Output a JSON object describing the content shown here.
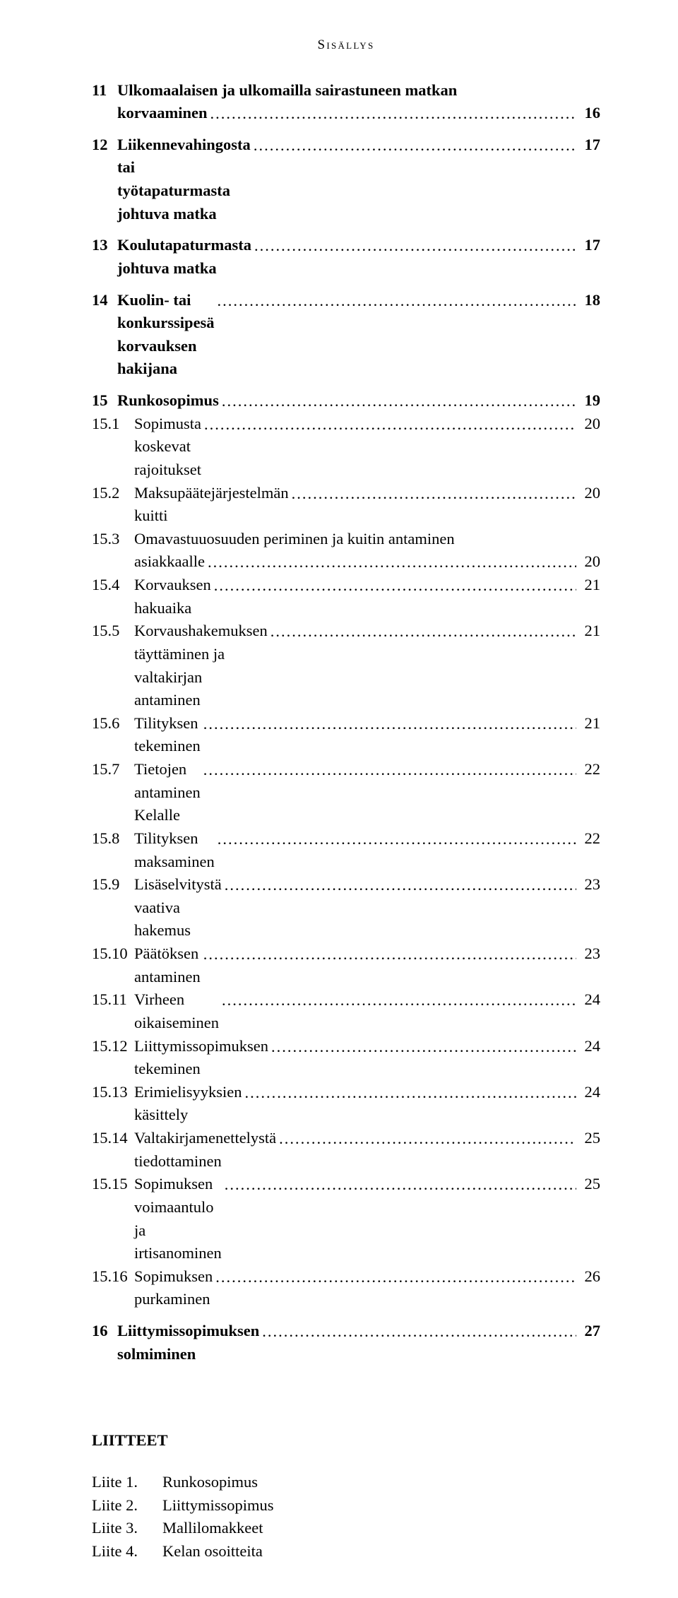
{
  "running_head": "Sisällys",
  "dots": "........................................................................................................................................................................................................................................",
  "toc": [
    {
      "lvl": 1,
      "num": "11",
      "title": "Ulkomaalaisen ja ulkomailla sairastuneen matkan korvaaminen",
      "page": "16",
      "gap": false,
      "wrap": true
    },
    {
      "lvl": 1,
      "num": "12",
      "title": "Liikennevahingosta tai työtapaturmasta johtuva matka",
      "page": "17",
      "gap": true
    },
    {
      "lvl": 1,
      "num": "13",
      "title": "Koulutapaturmasta johtuva matka",
      "page": "17",
      "gap": true
    },
    {
      "lvl": 1,
      "num": "14",
      "title": "Kuolin- tai konkurssipesä korvauksen hakijana",
      "page": "18",
      "gap": true
    },
    {
      "lvl": 1,
      "num": "15",
      "title": "Runkosopimus",
      "page": "19",
      "gap": true
    },
    {
      "lvl": 2,
      "num": "15.1",
      "title": "Sopimusta koskevat rajoitukset",
      "page": "20"
    },
    {
      "lvl": 2,
      "num": "15.2",
      "title": "Maksupäätejärjestelmän kuitti",
      "page": "20"
    },
    {
      "lvl": 2,
      "num": "15.3",
      "title": "Omavastuuosuuden periminen ja kuitin antaminen asiakkaalle",
      "page": "20",
      "wrap": true
    },
    {
      "lvl": 2,
      "num": "15.4",
      "title": "Korvauksen hakuaika",
      "page": "21"
    },
    {
      "lvl": 2,
      "num": "15.5",
      "title": "Korvaushakemuksen täyttäminen ja valtakirjan antaminen",
      "page": "21"
    },
    {
      "lvl": 2,
      "num": "15.6",
      "title": "Tilityksen tekeminen",
      "page": "21"
    },
    {
      "lvl": 2,
      "num": "15.7",
      "title": "Tietojen antaminen Kelalle",
      "page": "22"
    },
    {
      "lvl": 2,
      "num": "15.8",
      "title": "Tilityksen maksaminen",
      "page": "22"
    },
    {
      "lvl": 2,
      "num": "15.9",
      "title": "Lisäselvitystä vaativa hakemus",
      "page": "23"
    },
    {
      "lvl": 2,
      "num": "15.10",
      "title": "Päätöksen antaminen",
      "page": "23"
    },
    {
      "lvl": 2,
      "num": "15.11",
      "title": "Virheen oikaiseminen",
      "page": "24"
    },
    {
      "lvl": 2,
      "num": "15.12",
      "title": "Liittymissopimuksen tekeminen",
      "page": "24"
    },
    {
      "lvl": 2,
      "num": "15.13",
      "title": "Erimielisyyksien käsittely",
      "page": "24"
    },
    {
      "lvl": 2,
      "num": "15.14",
      "title": "Valtakirjamenettelystä tiedottaminen",
      "page": "25"
    },
    {
      "lvl": 2,
      "num": "15.15",
      "title": "Sopimuksen voimaantulo ja irtisanominen",
      "page": "25"
    },
    {
      "lvl": 2,
      "num": "15.16",
      "title": "Sopimuksen purkaminen",
      "page": "26"
    },
    {
      "lvl": 1,
      "num": "16",
      "title": "Liittymissopimuksen solmiminen",
      "page": "27",
      "gap": true
    }
  ],
  "attachments": {
    "heading": "LIITTEET",
    "items": [
      {
        "label": "Liite 1.",
        "text": "Runkosopimus"
      },
      {
        "label": "Liite 2.",
        "text": "Liittymissopimus"
      },
      {
        "label": "Liite 3.",
        "text": "Mallilomakkeet"
      },
      {
        "label": "Liite 4.",
        "text": "Kelan osoitteita"
      }
    ]
  },
  "wrap_lines": {
    "0": {
      "first": "Ulkomaalaisen ja ulkomailla sairastuneen matkan  korvaaminen"
    },
    "7": {
      "first": "Omavastuuosuuden periminen ja kuitin antaminen",
      "second": "asiakkaalle"
    }
  }
}
